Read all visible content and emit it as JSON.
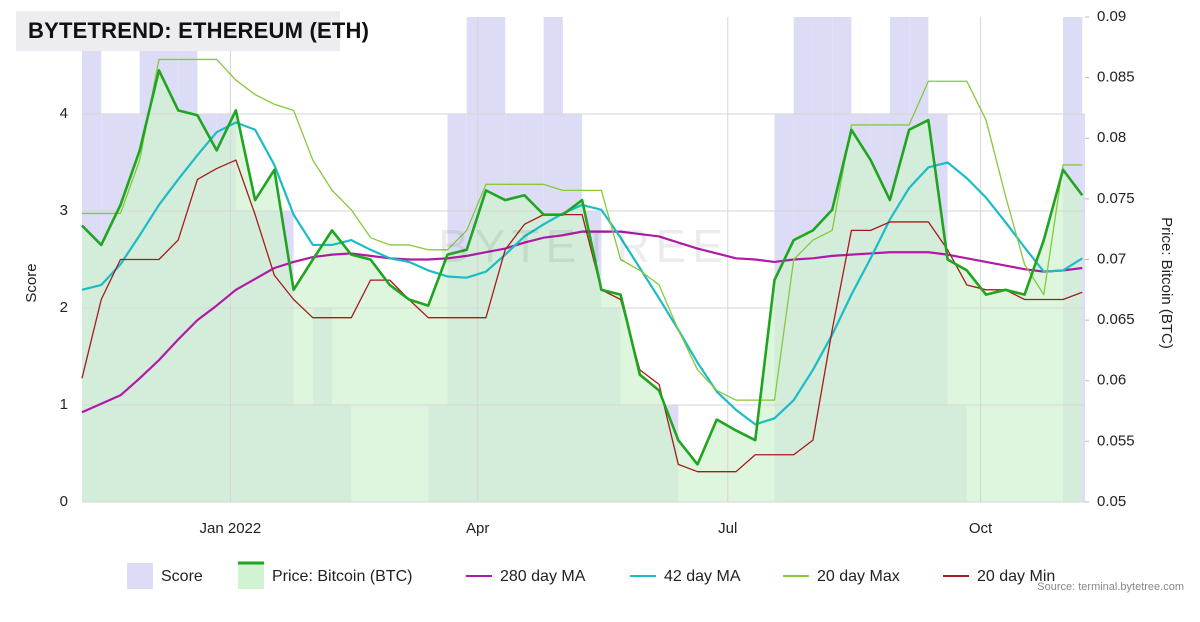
{
  "chart_data": {
    "type": "line",
    "title": "BYTETREND: ETHEREUM (ETH)",
    "y_label": "Score",
    "y2_label": "Price: Bitcoin (BTC)",
    "watermark": "BYTETREE",
    "source": "Source: terminal.bytetree.com",
    "x": [
      0,
      7,
      14,
      21,
      28,
      35,
      42,
      49,
      56,
      63,
      70,
      77,
      84,
      91,
      98,
      105,
      112,
      119,
      126,
      133,
      140,
      147,
      154,
      161,
      168,
      175,
      182,
      189,
      196,
      203,
      210,
      217,
      224,
      231,
      238,
      245,
      252,
      259,
      266,
      273,
      280,
      287,
      294,
      301,
      308,
      315,
      322,
      329,
      336,
      343,
      350,
      357,
      364
    ],
    "xlim": [
      0,
      365
    ],
    "xticks": [
      {
        "value": 54,
        "label": "Jan 2022"
      },
      {
        "value": 144,
        "label": "Apr"
      },
      {
        "value": 235,
        "label": "Jul"
      },
      {
        "value": 327,
        "label": "Oct"
      }
    ],
    "ylim": [
      0,
      5
    ],
    "yticks": [
      0,
      1,
      2,
      3,
      4
    ],
    "y2lim": [
      0.05,
      0.09
    ],
    "y2ticks": [
      0.05,
      0.055,
      0.06,
      0.065,
      0.07,
      0.075,
      0.08,
      0.085,
      0.09
    ],
    "grid": true,
    "series": [
      {
        "name": "Score",
        "color": "#dcdcf6",
        "kind": "step-area",
        "values": [
          5,
          4,
          4,
          5,
          5,
          5,
          4,
          4,
          3,
          3,
          3,
          1,
          2,
          1,
          0,
          0,
          0,
          0,
          1,
          4,
          5,
          5,
          4,
          4,
          5,
          4,
          3,
          2,
          1,
          1,
          1,
          0,
          0,
          0,
          0,
          0,
          4,
          5,
          5,
          5,
          4,
          4,
          5,
          5,
          4,
          1,
          0,
          0,
          0,
          0,
          0,
          5,
          4
        ]
      },
      {
        "name": "Price: Bitcoin (BTC)",
        "color": "#1fa51f",
        "fill": "#d2f3d2",
        "kind": "line-area",
        "axis": "y2",
        "values": [
          0.0728,
          0.0712,
          0.0745,
          0.079,
          0.0856,
          0.0823,
          0.0819,
          0.079,
          0.0823,
          0.0749,
          0.0774,
          0.0675,
          0.07,
          0.0724,
          0.0704,
          0.07,
          0.0679,
          0.0667,
          0.0662,
          0.0704,
          0.0708,
          0.0757,
          0.0749,
          0.0753,
          0.0737,
          0.0737,
          0.0749,
          0.0675,
          0.0671,
          0.0605,
          0.0592,
          0.0551,
          0.0531,
          0.0568,
          0.0559,
          0.0551,
          0.0683,
          0.0716,
          0.0724,
          0.0741,
          0.0807,
          0.0782,
          0.0749,
          0.0807,
          0.0815,
          0.07,
          0.0691,
          0.0671,
          0.0675,
          0.0671,
          0.0716,
          0.0774,
          0.0753
        ]
      },
      {
        "name": "280 day MA",
        "color": "#b01aa6",
        "axis": "y2",
        "values": [
          0.0574,
          0.0581,
          0.0588,
          0.0602,
          0.0617,
          0.0634,
          0.065,
          0.0662,
          0.0675,
          0.0684,
          0.0693,
          0.0698,
          0.0702,
          0.0704,
          0.0705,
          0.0703,
          0.0701,
          0.07,
          0.07,
          0.0701,
          0.0703,
          0.0706,
          0.0709,
          0.0714,
          0.0718,
          0.072,
          0.0723,
          0.0723,
          0.0723,
          0.0721,
          0.0719,
          0.0714,
          0.0709,
          0.0705,
          0.0701,
          0.07,
          0.0698,
          0.07,
          0.0701,
          0.0703,
          0.0704,
          0.0705,
          0.0706,
          0.0706,
          0.0706,
          0.0704,
          0.0701,
          0.0698,
          0.0695,
          0.0692,
          0.069,
          0.0691,
          0.0693
        ]
      },
      {
        "name": "42 day MA",
        "color": "#1cbcc6",
        "axis": "y2",
        "values": [
          0.0675,
          0.0679,
          0.0696,
          0.072,
          0.0745,
          0.0766,
          0.0786,
          0.0805,
          0.0813,
          0.0807,
          0.0778,
          0.0737,
          0.0712,
          0.0712,
          0.0716,
          0.0708,
          0.0701,
          0.0698,
          0.0691,
          0.0686,
          0.0685,
          0.069,
          0.0704,
          0.0719,
          0.0729,
          0.0738,
          0.0745,
          0.0741,
          0.0718,
          0.0693,
          0.0668,
          0.0642,
          0.0615,
          0.0591,
          0.0576,
          0.0564,
          0.0569,
          0.0584,
          0.0609,
          0.0638,
          0.0671,
          0.0701,
          0.0733,
          0.0759,
          0.0776,
          0.078,
          0.0767,
          0.0751,
          0.0731,
          0.071,
          0.069,
          0.0691,
          0.0701
        ]
      },
      {
        "name": "20 day Max",
        "color": "#86c93a",
        "axis": "y2",
        "values": [
          0.0738,
          0.0738,
          0.0738,
          0.0782,
          0.0865,
          0.0865,
          0.0865,
          0.0865,
          0.0848,
          0.0836,
          0.0828,
          0.0823,
          0.0782,
          0.0757,
          0.0741,
          0.0718,
          0.0712,
          0.0712,
          0.0708,
          0.0708,
          0.0724,
          0.0762,
          0.0762,
          0.0762,
          0.0762,
          0.0757,
          0.0757,
          0.0757,
          0.07,
          0.0691,
          0.0679,
          0.0642,
          0.0609,
          0.0592,
          0.0584,
          0.0584,
          0.0584,
          0.07,
          0.0716,
          0.0724,
          0.0811,
          0.0811,
          0.0811,
          0.0811,
          0.0847,
          0.0847,
          0.0847,
          0.0815,
          0.0753,
          0.0696,
          0.0671,
          0.0778,
          0.0778
        ]
      },
      {
        "name": "20 day Min",
        "color": "#a51b1b",
        "axis": "y2",
        "values": [
          0.0602,
          0.0667,
          0.07,
          0.07,
          0.07,
          0.0716,
          0.0766,
          0.0775,
          0.0782,
          0.0737,
          0.0687,
          0.0667,
          0.0652,
          0.0652,
          0.0652,
          0.0683,
          0.0683,
          0.0667,
          0.0652,
          0.0652,
          0.0652,
          0.0652,
          0.0708,
          0.0729,
          0.0737,
          0.0737,
          0.0737,
          0.0675,
          0.0667,
          0.0609,
          0.0597,
          0.0531,
          0.0525,
          0.0525,
          0.0525,
          0.0539,
          0.0539,
          0.0539,
          0.0551,
          0.0642,
          0.0724,
          0.0724,
          0.0731,
          0.0731,
          0.0731,
          0.0708,
          0.0679,
          0.0675,
          0.0675,
          0.0667,
          0.0667,
          0.0667,
          0.0673
        ]
      }
    ]
  }
}
